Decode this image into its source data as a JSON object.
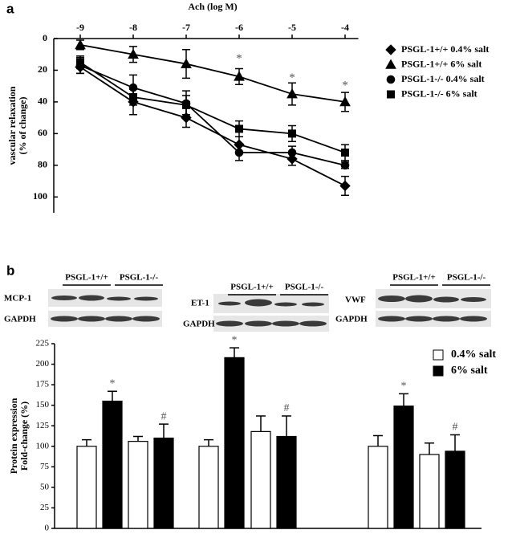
{
  "chart_data": [
    {
      "type": "line",
      "panel": "a",
      "title": "Ach (log M)",
      "ylabel": [
        "vascular relaxation",
        "(% of change)"
      ],
      "x": [
        -9,
        -8,
        -7,
        -6,
        -5,
        -4
      ],
      "xlim": [
        -9.5,
        -3.75
      ],
      "xticks": [
        -9,
        -8,
        -7,
        -6,
        -5,
        -4
      ],
      "ylim": [
        0,
        110
      ],
      "yticks": [
        0,
        20,
        40,
        60,
        80,
        100
      ],
      "y_inverted": true,
      "x_axis_position": "top",
      "series": [
        {
          "name": "PSGL-1+/+ 0.4% salt",
          "color": "#000000",
          "marker": "diamond",
          "values": [
            18,
            40,
            50,
            67,
            76,
            93
          ],
          "errors": [
            4,
            8,
            6,
            5,
            4,
            6
          ]
        },
        {
          "name": "PSGL-1+/+ 6% salt",
          "color": "#000000",
          "marker": "triangle",
          "values": [
            4,
            10,
            16,
            24,
            35,
            40
          ],
          "errors": [
            3,
            5,
            9,
            5,
            7,
            6
          ]
        },
        {
          "name": "PSGL-1-/- 0.4% salt",
          "color": "#000000",
          "marker": "circle",
          "values": [
            17,
            31,
            41,
            72,
            72,
            80
          ],
          "errors": [
            5,
            8,
            8,
            5,
            4,
            2
          ]
        },
        {
          "name": "PSGL-1-/- 6% salt",
          "color": "#000000",
          "marker": "square",
          "values": [
            15,
            37,
            42,
            57,
            60,
            72
          ],
          "errors": [
            4,
            5,
            6,
            5,
            5,
            5
          ]
        }
      ],
      "annotations": [
        {
          "text": "*",
          "x": -6,
          "y": 13
        },
        {
          "text": "*",
          "x": -5,
          "y": 25
        },
        {
          "text": "*",
          "x": -4,
          "y": 30
        }
      ],
      "legend": "right"
    },
    {
      "type": "bar",
      "panel": "b",
      "genotypes": [
        "PSGL-1+/+",
        "PSGL-1-/-"
      ],
      "blots": [
        {
          "protein": "MCP-1",
          "loading": "GAPDH"
        },
        {
          "protein": "ET-1",
          "loading": "GAPDH"
        },
        {
          "protein": "VWF",
          "loading": "GAPDH"
        }
      ],
      "ylabel": [
        "Protein expression",
        "Fold-change (%)"
      ],
      "categories": [
        null,
        null,
        null,
        null,
        null,
        null
      ],
      "ylim": [
        0,
        225
      ],
      "yticks": [
        0,
        25,
        50,
        75,
        100,
        125,
        150,
        175,
        200,
        225
      ],
      "series": [
        {
          "name": "0.4% salt",
          "color": "#ffffff",
          "values": [
            100,
            106,
            100,
            118,
            100,
            90
          ],
          "errors": [
            8,
            6,
            8,
            19,
            13,
            14
          ]
        },
        {
          "name": "6% salt",
          "color": "#000000",
          "values": [
            155,
            110,
            208,
            112,
            149,
            94
          ],
          "errors": [
            12,
            17,
            12,
            25,
            15,
            20
          ],
          "markers": [
            "*",
            "#",
            "*",
            "#",
            "*",
            "#"
          ]
        }
      ],
      "legend": "upper right"
    }
  ]
}
